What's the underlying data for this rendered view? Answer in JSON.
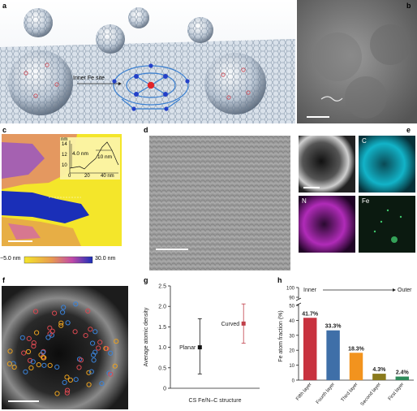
{
  "panel_labels": {
    "a": "a",
    "b": "b",
    "c": "c",
    "d": "d",
    "e": "e",
    "f": "f",
    "g": "g",
    "h": "h"
  },
  "panel_a": {
    "annotation": "Inner Fe site"
  },
  "panel_c": {
    "inset_unit": "nm",
    "inset_yticks": [
      "14",
      "12",
      "10"
    ],
    "inset_xticks": [
      "0",
      "20",
      "40 nm"
    ],
    "height_label": "4.0 nm",
    "width_label": "10 nm",
    "colorbar_min": "−5.0 nm",
    "colorbar_max": "30.0 nm",
    "colors": {
      "low": "#f4e62a",
      "mid": "#d05fb0",
      "high": "#1a2fb8"
    }
  },
  "panel_e": {
    "labels": [
      "C",
      "N",
      "Fe"
    ],
    "colors": {
      "C": "#12b3c8",
      "N": "#b02bb8",
      "Fe": "#3ec46a"
    }
  },
  "panel_g": {
    "chart_data": {
      "type": "scatter",
      "ylabel": "Average atomic density",
      "xlabel": "CS Fe/N–C structure",
      "ylim": [
        0,
        2.5
      ],
      "yticks": [
        "0",
        "0.5",
        "1.0",
        "1.5",
        "2.0",
        "2.5"
      ],
      "points": [
        {
          "label": "Planar",
          "value": 1.0,
          "low": 0.35,
          "high": 1.7,
          "color": "#111111"
        },
        {
          "label": "Curved",
          "value": 1.58,
          "low": 1.1,
          "high": 2.06,
          "color": "#c0404a"
        }
      ]
    }
  },
  "panel_h": {
    "chart_data": {
      "type": "bar",
      "ylabel": "Fe atom fraction (%)",
      "direction_start": "Inner",
      "direction_end": "Outer",
      "yticks": [
        "0",
        "10",
        "20",
        "30",
        "40",
        "50",
        "90",
        "100"
      ],
      "categories": [
        "Fifth layer",
        "Fourth layer",
        "Third layer",
        "Second layer",
        "First layer"
      ],
      "values": [
        41.7,
        33.3,
        18.3,
        4.3,
        2.4
      ],
      "value_labels": [
        "41.7%",
        "33.3%",
        "18.3%",
        "4.3%",
        "2.4%"
      ],
      "colors": [
        "#c8323f",
        "#3f6fa8",
        "#f2931e",
        "#8a7a1c",
        "#2e8b5a"
      ]
    }
  }
}
